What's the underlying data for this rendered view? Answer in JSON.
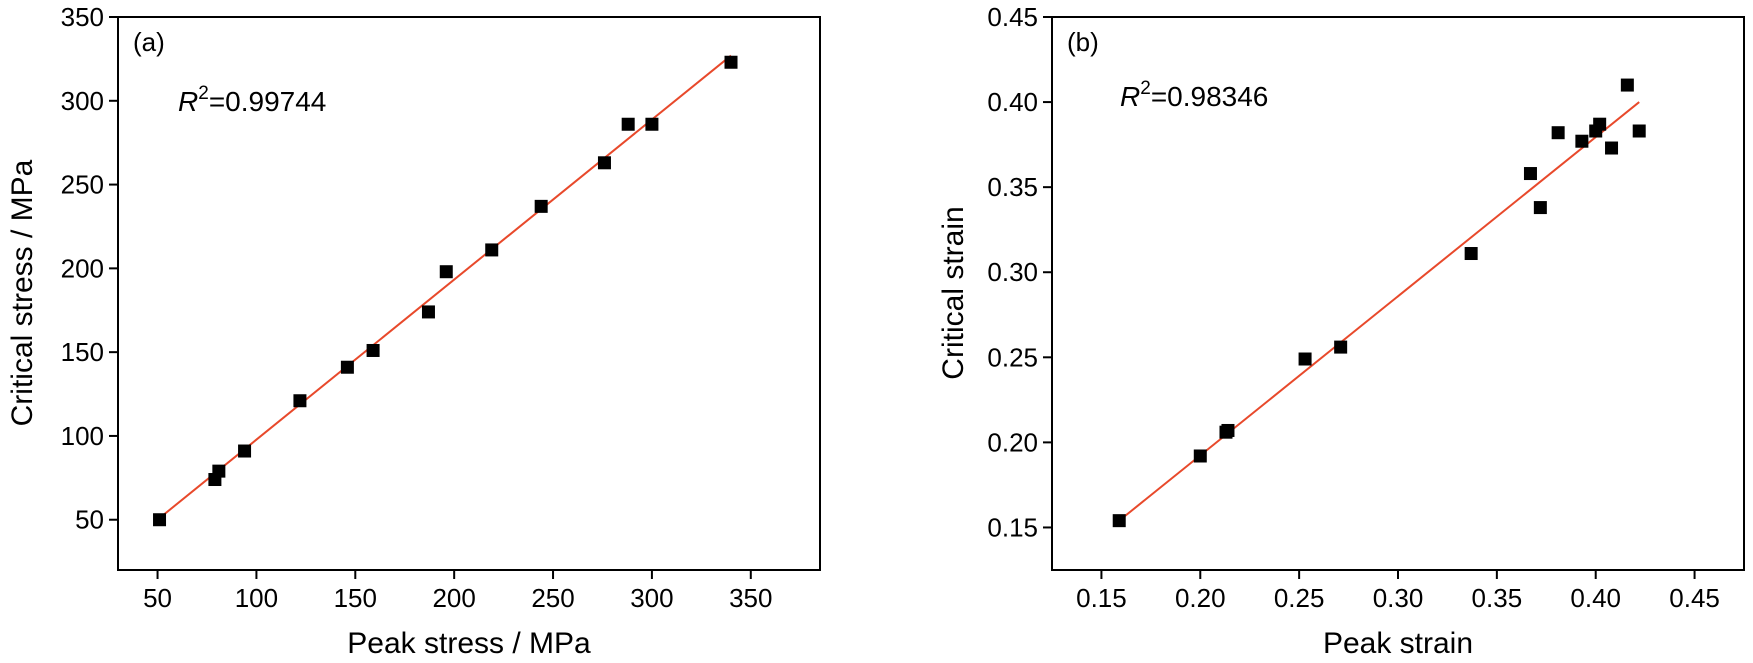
{
  "chart_data": [
    {
      "type": "scatter",
      "panel_label": "(a)",
      "annotation": {
        "r_symbol": "R",
        "r_exponent": "2",
        "r_value": "=0.99744"
      },
      "xlabel": "Peak stress / MPa",
      "ylabel": "Critical stress / MPa",
      "xlim": [
        30,
        385
      ],
      "ylim": [
        20,
        350
      ],
      "xticks": [
        50,
        100,
        150,
        200,
        250,
        300,
        350
      ],
      "yticks": [
        50,
        100,
        150,
        200,
        250,
        300,
        350
      ],
      "grid": false,
      "series": [
        {
          "marker": "square",
          "color": "#000000",
          "x": [
            51,
            79,
            81,
            94,
            122,
            146,
            159,
            187,
            196,
            219,
            244,
            276,
            288,
            300,
            340
          ],
          "y": [
            50,
            74,
            79,
            91,
            121,
            141,
            151,
            174,
            198,
            211,
            237,
            263,
            286,
            286,
            323
          ]
        }
      ],
      "fit_line": {
        "color": "#e8492b",
        "x": [
          51,
          340
        ],
        "y": [
          51,
          327
        ]
      }
    },
    {
      "type": "scatter",
      "panel_label": "(b)",
      "annotation": {
        "r_symbol": "R",
        "r_exponent": "2",
        "r_value": "=0.98346"
      },
      "xlabel": "Peak strain",
      "ylabel": "Critical strain",
      "xlim": [
        0.125,
        0.475
      ],
      "ylim": [
        0.125,
        0.45
      ],
      "xticks": [
        "0.15",
        "0.20",
        "0.25",
        "0.30",
        "0.35",
        "0.40",
        "0.45"
      ],
      "yticks": [
        "0.15",
        "0.20",
        "0.25",
        "0.30",
        "0.35",
        "0.40",
        "0.45"
      ],
      "grid": false,
      "series": [
        {
          "marker": "square",
          "color": "#000000",
          "x": [
            0.159,
            0.2,
            0.213,
            0.214,
            0.253,
            0.271,
            0.337,
            0.367,
            0.372,
            0.381,
            0.393,
            0.4,
            0.402,
            0.408,
            0.416,
            0.422
          ],
          "y": [
            0.154,
            0.192,
            0.206,
            0.207,
            0.249,
            0.256,
            0.311,
            0.358,
            0.338,
            0.382,
            0.377,
            0.383,
            0.387,
            0.373,
            0.41,
            0.383
          ]
        }
      ],
      "fit_line": {
        "color": "#e8492b",
        "x": [
          0.159,
          0.422
        ],
        "y": [
          0.154,
          0.4
        ]
      }
    }
  ]
}
